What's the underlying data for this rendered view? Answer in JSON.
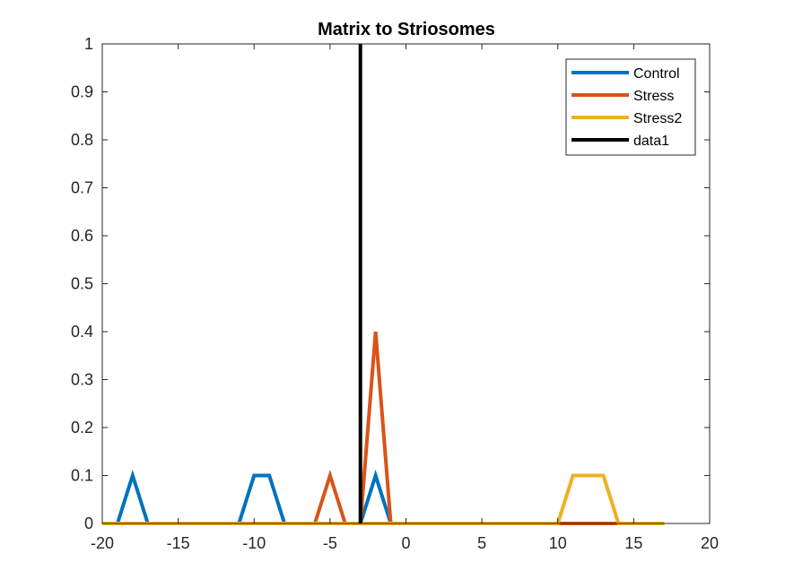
{
  "chart_data": {
    "type": "line",
    "title": "Matrix to Striosomes",
    "xlabel": "",
    "ylabel": "",
    "xlim": [
      -20,
      20
    ],
    "ylim": [
      0,
      1
    ],
    "xticks": [
      -20,
      -15,
      -10,
      -5,
      0,
      5,
      10,
      15,
      20
    ],
    "xtick_labels": [
      "-20",
      "-15",
      "-10",
      "-5",
      "0",
      "5",
      "10",
      "15",
      "20"
    ],
    "yticks": [
      0,
      0.1,
      0.2,
      0.3,
      0.4,
      0.5,
      0.6,
      0.7,
      0.8,
      0.9,
      1
    ],
    "ytick_labels": [
      "0",
      "0.1",
      "0.2",
      "0.3",
      "0.4",
      "0.5",
      "0.6",
      "0.7",
      "0.8",
      "0.9",
      "1"
    ],
    "grid": false,
    "legend_position": "top-right",
    "series": [
      {
        "name": "Control",
        "color": "#0072BD",
        "x": [
          -20,
          -19,
          -18,
          -17,
          -16,
          -15,
          -14,
          -13,
          -12,
          -11,
          -10,
          -9,
          -8,
          -7,
          -6,
          -5,
          -4,
          -3,
          -2,
          -1,
          0,
          1,
          2,
          3,
          4,
          5,
          6,
          7,
          8,
          9,
          10,
          11,
          12,
          13,
          14,
          15,
          16,
          17
        ],
        "y": [
          0,
          0,
          0.1,
          0,
          0,
          0,
          0,
          0,
          0,
          0,
          0.1,
          0.1,
          0,
          0,
          0,
          0,
          0,
          0,
          0.1,
          0,
          0,
          0,
          0,
          0,
          0,
          0,
          0,
          0,
          0,
          0,
          0,
          0,
          0,
          0,
          0,
          0,
          0,
          0
        ]
      },
      {
        "name": "Stress",
        "color": "#D95319",
        "x": [
          -20,
          -19,
          -18,
          -17,
          -16,
          -15,
          -14,
          -13,
          -12,
          -11,
          -10,
          -9,
          -8,
          -7,
          -6,
          -5,
          -4,
          -3,
          -2,
          -1,
          0,
          1,
          2,
          3,
          4,
          5,
          6,
          7,
          8,
          9,
          10,
          11,
          12,
          13,
          14,
          15,
          16,
          17
        ],
        "y": [
          0,
          0,
          0,
          0,
          0,
          0,
          0,
          0,
          0,
          0,
          0,
          0,
          0,
          0,
          0,
          0.1,
          0,
          0,
          0.4,
          0,
          0,
          0,
          0,
          0,
          0,
          0,
          0,
          0,
          0,
          0,
          0,
          0,
          0,
          0,
          0,
          0,
          0,
          0
        ]
      },
      {
        "name": "Stress2",
        "color": "#EDB120",
        "x": [
          -20,
          -19,
          -18,
          -17,
          -16,
          -15,
          -14,
          -13,
          -12,
          -11,
          -10,
          -9,
          -8,
          -7,
          -6,
          -5,
          -4,
          -3,
          -2,
          -1,
          0,
          1,
          2,
          3,
          4,
          5,
          6,
          7,
          8,
          9,
          10,
          11,
          12,
          13,
          14,
          15,
          16,
          17
        ],
        "y": [
          0,
          0,
          0,
          0,
          0,
          0,
          0,
          0,
          0,
          0,
          0,
          0,
          0,
          0,
          0,
          0,
          0,
          0,
          0,
          0,
          0,
          0,
          0,
          0,
          0,
          0,
          0,
          0,
          0,
          0,
          0,
          0.1,
          0.1,
          0.1,
          0,
          0,
          0,
          0
        ]
      },
      {
        "name": "data1",
        "color": "#000000",
        "x": [
          -3,
          -3
        ],
        "y": [
          0,
          1
        ]
      }
    ]
  }
}
